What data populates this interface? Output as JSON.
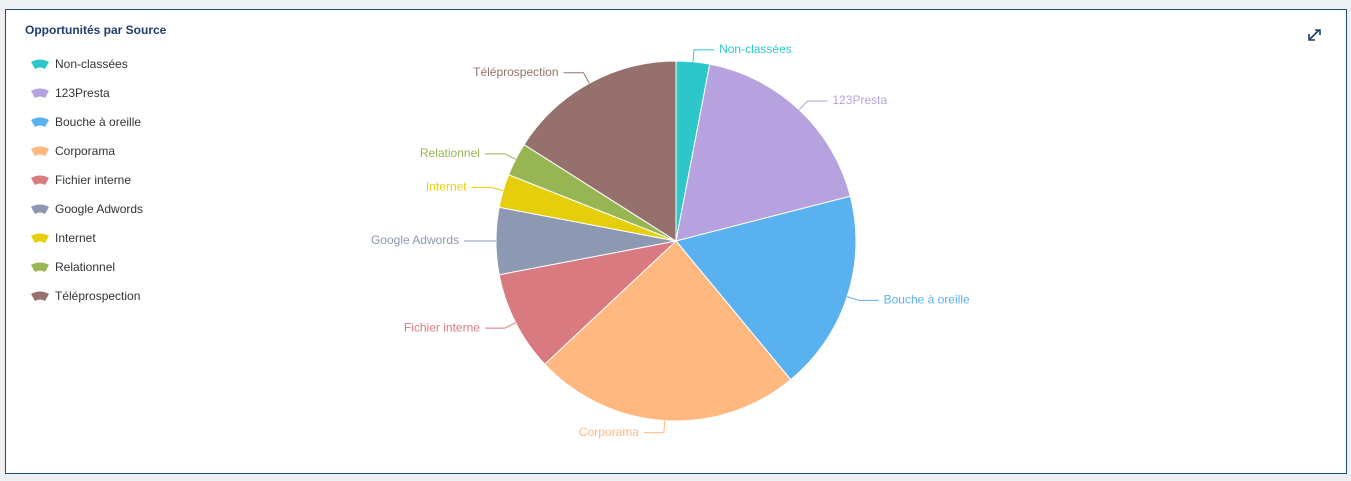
{
  "chart_data": {
    "type": "pie",
    "title": "Opportunités par Source",
    "categories": [
      "Non-classées",
      "123Presta",
      "Bouche à oreille",
      "Corporama",
      "Fichier interne",
      "Google Adwords",
      "Internet",
      "Relationnel",
      "Téléprospection"
    ],
    "values": [
      3,
      18,
      18,
      24,
      9,
      6,
      3,
      3,
      16
    ],
    "colors": [
      "#2ec7c9",
      "#b6a2de",
      "#5ab1ef",
      "#ffb980",
      "#d87a80",
      "#8d98b3",
      "#e5cf0d",
      "#97b552",
      "#95706d"
    ],
    "legend": "left"
  }
}
